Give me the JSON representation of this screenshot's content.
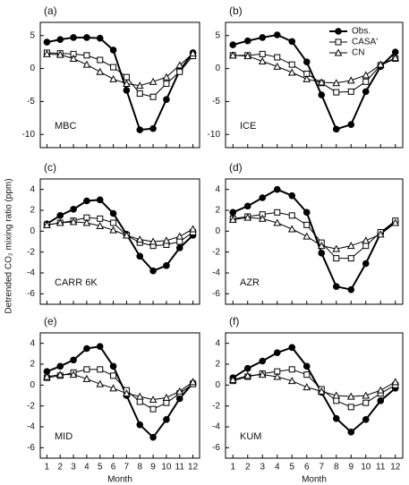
{
  "ylabel": "Detrended CO₂ mixing ratio (ppm)",
  "chart_data": [
    {
      "type": "line",
      "title": "(a)",
      "annotation": "MBC",
      "x": [
        1,
        2,
        3,
        4,
        5,
        6,
        7,
        8,
        9,
        10,
        11,
        12
      ],
      "xlim": [
        0.5,
        12.5
      ],
      "xticks": [
        1,
        2,
        3,
        4,
        5,
        6,
        7,
        8,
        9,
        10,
        11,
        12
      ],
      "xtick_labels": false,
      "ylim": [
        -12,
        7
      ],
      "yticks": [
        5,
        0,
        -5,
        -10
      ],
      "legend": false,
      "series": [
        {
          "name": "Obs.",
          "color": "#000000",
          "marker": "circle",
          "values": [
            4.0,
            4.4,
            4.7,
            4.7,
            4.6,
            2.8,
            -3.3,
            -9.3,
            -9.1,
            -4.7,
            -0.3,
            2.4
          ]
        },
        {
          "name": "CASA′",
          "color": "#000000",
          "marker": "square",
          "values": [
            2.4,
            2.3,
            2.2,
            2.0,
            1.3,
            0.2,
            -1.3,
            -3.8,
            -4.3,
            -2.3,
            -0.5,
            1.9
          ]
        },
        {
          "name": "CN",
          "color": "#000000",
          "marker": "triangle",
          "values": [
            2.2,
            2.1,
            1.5,
            0.6,
            -0.5,
            -1.6,
            -2.3,
            -2.6,
            -2.0,
            -1.3,
            0.5,
            2.3
          ]
        }
      ]
    },
    {
      "type": "line",
      "title": "(b)",
      "annotation": "ICE",
      "x": [
        1,
        2,
        3,
        4,
        5,
        6,
        7,
        8,
        9,
        10,
        11,
        12
      ],
      "xlim": [
        0.5,
        12.5
      ],
      "xticks": [
        1,
        2,
        3,
        4,
        5,
        6,
        7,
        8,
        9,
        10,
        11,
        12
      ],
      "xtick_labels": false,
      "ylim": [
        -12,
        7
      ],
      "yticks": [
        5,
        0,
        -5,
        -10
      ],
      "legend": "upper right",
      "series": [
        {
          "name": "Obs.",
          "color": "#000000",
          "marker": "circle",
          "values": [
            3.6,
            4.2,
            4.7,
            5.1,
            4.1,
            1.0,
            -4.0,
            -9.2,
            -8.5,
            -3.5,
            0.3,
            2.5
          ]
        },
        {
          "name": "CASA′",
          "color": "#000000",
          "marker": "square",
          "values": [
            2.0,
            2.0,
            2.2,
            1.7,
            0.6,
            -0.8,
            -2.2,
            -3.6,
            -3.5,
            -2.0,
            0.5,
            1.5
          ]
        },
        {
          "name": "CN",
          "color": "#000000",
          "marker": "triangle",
          "values": [
            2.0,
            1.9,
            1.1,
            0.3,
            -0.6,
            -1.6,
            -2.1,
            -2.2,
            -1.8,
            -1.0,
            0.6,
            1.6
          ]
        }
      ]
    },
    {
      "type": "line",
      "title": "(c)",
      "annotation": "CARR 6K",
      "x": [
        1,
        2,
        3,
        4,
        5,
        6,
        7,
        8,
        9,
        10,
        11,
        12
      ],
      "xlim": [
        0.5,
        12.5
      ],
      "xticks": [
        1,
        2,
        3,
        4,
        5,
        6,
        7,
        8,
        9,
        10,
        11,
        12
      ],
      "xtick_labels": false,
      "ylim": [
        -7,
        5
      ],
      "yticks": [
        4,
        2,
        0,
        -2,
        -4,
        -6
      ],
      "legend": false,
      "series": [
        {
          "name": "Obs.",
          "color": "#000000",
          "marker": "circle",
          "values": [
            0.7,
            1.5,
            2.1,
            2.9,
            3.0,
            1.7,
            -0.3,
            -2.4,
            -3.8,
            -3.3,
            -1.6,
            -0.4
          ]
        },
        {
          "name": "CASA′",
          "color": "#000000",
          "marker": "square",
          "values": [
            0.6,
            0.8,
            1.0,
            1.3,
            1.2,
            0.8,
            -0.4,
            -1.1,
            -1.4,
            -1.3,
            -1.0,
            -0.1
          ]
        },
        {
          "name": "CN",
          "color": "#000000",
          "marker": "triangle",
          "values": [
            0.6,
            0.8,
            0.9,
            0.8,
            0.5,
            0.1,
            -0.4,
            -0.8,
            -1.0,
            -0.9,
            -0.5,
            0.2
          ]
        }
      ]
    },
    {
      "type": "line",
      "title": "(d)",
      "annotation": "AZR",
      "x": [
        1,
        2,
        3,
        4,
        5,
        6,
        7,
        8,
        9,
        10,
        11,
        12
      ],
      "xlim": [
        0.5,
        12.5
      ],
      "xticks": [
        1,
        2,
        3,
        4,
        5,
        6,
        7,
        8,
        9,
        10,
        11,
        12
      ],
      "xtick_labels": false,
      "ylim": [
        -7,
        5
      ],
      "yticks": [
        4,
        2,
        0,
        -2,
        -4,
        -6
      ],
      "legend": false,
      "series": [
        {
          "name": "Obs.",
          "color": "#000000",
          "marker": "circle",
          "values": [
            1.8,
            2.4,
            3.2,
            4.0,
            3.4,
            1.8,
            -2.1,
            -5.3,
            -5.6,
            -3.1,
            -0.2,
            0.9
          ]
        },
        {
          "name": "CASA′",
          "color": "#000000",
          "marker": "square",
          "values": [
            1.2,
            1.4,
            1.6,
            1.8,
            1.5,
            0.6,
            -1.1,
            -2.6,
            -2.6,
            -1.4,
            -0.1,
            1.0
          ]
        },
        {
          "name": "CN",
          "color": "#000000",
          "marker": "triangle",
          "values": [
            1.1,
            1.3,
            1.2,
            0.8,
            0.2,
            -0.5,
            -1.4,
            -1.7,
            -1.4,
            -0.9,
            -0.3,
            0.8
          ]
        }
      ]
    },
    {
      "type": "line",
      "title": "(e)",
      "annotation": "MID",
      "x": [
        1,
        2,
        3,
        4,
        5,
        6,
        7,
        8,
        9,
        10,
        11,
        12
      ],
      "xlim": [
        0.5,
        12.5
      ],
      "xticks": [
        1,
        2,
        3,
        4,
        5,
        6,
        7,
        8,
        9,
        10,
        11,
        12
      ],
      "xtick_labels": true,
      "xlabel": "Month",
      "ylim": [
        -7,
        5
      ],
      "yticks": [
        4,
        2,
        0,
        -2,
        -4,
        -6
      ],
      "legend": false,
      "series": [
        {
          "name": "Obs.",
          "color": "#000000",
          "marker": "circle",
          "values": [
            1.3,
            1.8,
            2.4,
            3.5,
            3.7,
            1.8,
            -1.0,
            -3.8,
            -5.0,
            -3.3,
            -1.3,
            0.2
          ]
        },
        {
          "name": "CASA′",
          "color": "#000000",
          "marker": "square",
          "values": [
            0.7,
            0.9,
            1.2,
            1.5,
            1.5,
            0.9,
            -0.5,
            -1.6,
            -2.3,
            -1.7,
            -0.8,
            0.1
          ]
        },
        {
          "name": "CN",
          "color": "#000000",
          "marker": "triangle",
          "values": [
            0.8,
            1.0,
            1.0,
            0.6,
            0.1,
            -0.3,
            -0.8,
            -1.1,
            -1.4,
            -1.2,
            -0.6,
            0.3
          ]
        }
      ]
    },
    {
      "type": "line",
      "title": "(f)",
      "annotation": "KUM",
      "x": [
        1,
        2,
        3,
        4,
        5,
        6,
        7,
        8,
        9,
        10,
        11,
        12
      ],
      "xlim": [
        0.5,
        12.5
      ],
      "xticks": [
        1,
        2,
        3,
        4,
        5,
        6,
        7,
        8,
        9,
        10,
        11,
        12
      ],
      "xtick_labels": true,
      "xlabel": "Month",
      "ylim": [
        -7,
        5
      ],
      "yticks": [
        4,
        2,
        0,
        -2,
        -4,
        -6
      ],
      "legend": false,
      "series": [
        {
          "name": "Obs.",
          "color": "#000000",
          "marker": "circle",
          "values": [
            0.7,
            1.6,
            2.3,
            3.1,
            3.6,
            1.8,
            -0.7,
            -3.2,
            -4.5,
            -3.3,
            -1.5,
            -0.3
          ]
        },
        {
          "name": "CASA′",
          "color": "#000000",
          "marker": "square",
          "values": [
            0.4,
            0.8,
            1.1,
            1.3,
            1.5,
            1.0,
            -0.4,
            -1.5,
            -2.1,
            -1.7,
            -0.8,
            0.0
          ]
        },
        {
          "name": "CN",
          "color": "#000000",
          "marker": "triangle",
          "values": [
            0.5,
            0.9,
            1.0,
            0.8,
            0.4,
            -0.2,
            -0.6,
            -1.0,
            -1.1,
            -1.0,
            -0.5,
            0.3
          ]
        }
      ]
    }
  ]
}
